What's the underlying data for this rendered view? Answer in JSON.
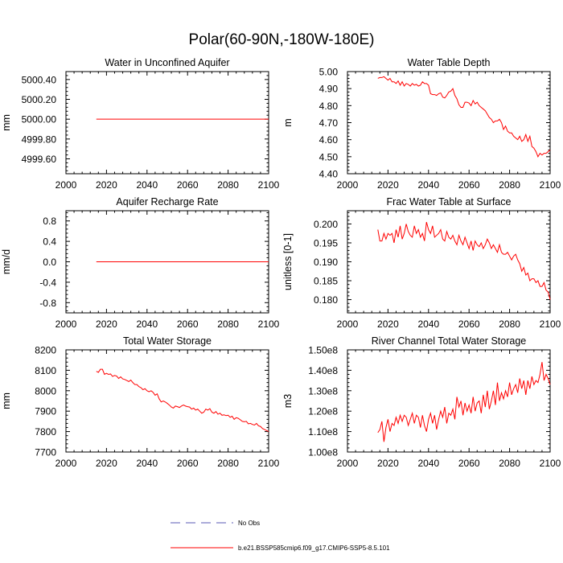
{
  "figure_title": "Polar(60-90N,-180W-180E)",
  "legend": {
    "items": [
      {
        "label": "No Obs",
        "style": "dashed",
        "color": "#5a5ab4"
      },
      {
        "label": "b.e21.BSSP585cmip6.f09_g17.CMIP6-SSP5-8.5.101",
        "style": "solid",
        "color": "#ff0000"
      }
    ]
  },
  "colors": {
    "series": "#ff0000",
    "axis": "#000000"
  },
  "chart_data": [
    {
      "type": "line",
      "title": "Water in Unconfined Aquifer",
      "ylabel": "mm",
      "xlabel": "",
      "xlim": [
        2000,
        2100
      ],
      "xticks": [
        2000,
        2020,
        2040,
        2060,
        2080,
        2100
      ],
      "xtick_labels": [
        "2000",
        "2020",
        "2040",
        "2060",
        "2080",
        "2100"
      ],
      "ylim": [
        4999.45,
        5000.48
      ],
      "yticks": [
        5000.4,
        5000.2,
        5000.0,
        4999.8,
        4999.6
      ],
      "ytick_labels": [
        "5000.40",
        "5000.20",
        "5000.00",
        "4999.80",
        "4999.60"
      ],
      "series": [
        {
          "name": "b.e21.BSSP585cmip6.f09_g17.CMIP6-SSP5-8.5.101",
          "x_start": 2015,
          "values": [
            5000.0,
            5000.0,
            5000.0,
            5000.0,
            5000.0,
            5000.0,
            5000.0,
            5000.0,
            5000.0,
            5000.0,
            5000.0,
            5000.0,
            5000.0,
            5000.0,
            5000.0,
            5000.0,
            5000.0,
            5000.0,
            5000.0,
            5000.0,
            5000.0,
            5000.0,
            5000.0,
            5000.0,
            5000.0,
            5000.0,
            5000.0,
            5000.0,
            5000.0,
            5000.0,
            5000.0,
            5000.0,
            5000.0,
            5000.0,
            5000.0,
            5000.0,
            5000.0,
            5000.0,
            5000.0,
            5000.0,
            5000.0,
            5000.0,
            5000.0,
            5000.0,
            5000.0,
            5000.0,
            5000.0,
            5000.0,
            5000.0,
            5000.0,
            5000.0,
            5000.0,
            5000.0,
            5000.0,
            5000.0,
            5000.0,
            5000.0,
            5000.0,
            5000.0,
            5000.0,
            5000.0,
            5000.0,
            5000.0,
            5000.0,
            5000.0,
            5000.0,
            5000.0,
            5000.0,
            5000.0,
            5000.0,
            5000.0,
            5000.0,
            5000.0,
            5000.0,
            5000.0,
            5000.0,
            5000.0,
            5000.0,
            5000.0,
            5000.0,
            5000.0,
            5000.0,
            5000.0,
            5000.0,
            5000.0,
            5000.0
          ]
        }
      ]
    },
    {
      "type": "line",
      "title": "Water Table Depth",
      "ylabel": "m",
      "xlabel": "",
      "xlim": [
        2000,
        2100
      ],
      "xticks": [
        2000,
        2020,
        2040,
        2060,
        2080,
        2100
      ],
      "xtick_labels": [
        "2000",
        "2020",
        "2040",
        "2060",
        "2080",
        "2100"
      ],
      "ylim": [
        4.4,
        5.0
      ],
      "yticks": [
        5.0,
        4.9,
        4.8,
        4.7,
        4.6,
        4.5,
        4.4
      ],
      "ytick_labels": [
        "5.00",
        "4.90",
        "4.80",
        "4.70",
        "4.60",
        "4.50",
        "4.40"
      ],
      "series": [
        {
          "name": "b.e21.BSSP585cmip6.f09_g17.CMIP6-SSP5-8.5.101",
          "x_start": 2015,
          "values": [
            4.96,
            4.965,
            4.965,
            4.97,
            4.96,
            4.95,
            4.96,
            4.94,
            4.94,
            4.93,
            4.945,
            4.92,
            4.94,
            4.915,
            4.93,
            4.925,
            4.915,
            4.93,
            4.92,
            4.925,
            4.915,
            4.92,
            4.94,
            4.93,
            4.93,
            4.92,
            4.87,
            4.865,
            4.865,
            4.86,
            4.87,
            4.875,
            4.85,
            4.845,
            4.86,
            4.88,
            4.885,
            4.9,
            4.86,
            4.84,
            4.805,
            4.79,
            4.79,
            4.82,
            4.82,
            4.815,
            4.8,
            4.83,
            4.81,
            4.82,
            4.8,
            4.79,
            4.78,
            4.77,
            4.75,
            4.73,
            4.72,
            4.7,
            4.71,
            4.71,
            4.72,
            4.7,
            4.66,
            4.68,
            4.65,
            4.64,
            4.64,
            4.62,
            4.61,
            4.6,
            4.62,
            4.59,
            4.6,
            4.63,
            4.59,
            4.62,
            4.56,
            4.55,
            4.53,
            4.5,
            4.52,
            4.51,
            4.52,
            4.52,
            4.53,
            4.54
          ]
        }
      ]
    },
    {
      "type": "line",
      "title": "Aquifer Recharge Rate",
      "ylabel": "mm/d",
      "xlabel": "",
      "xlim": [
        2000,
        2100
      ],
      "xticks": [
        2000,
        2020,
        2040,
        2060,
        2080,
        2100
      ],
      "xtick_labels": [
        "2000",
        "2020",
        "2040",
        "2060",
        "2080",
        "2100"
      ],
      "ylim": [
        -1.0,
        1.0
      ],
      "yticks": [
        0.8,
        0.4,
        0.0,
        -0.4,
        -0.8
      ],
      "ytick_labels": [
        "0.8",
        "0.4",
        "0.0",
        "-0.4",
        "-0.8"
      ],
      "series": [
        {
          "name": "b.e21.BSSP585cmip6.f09_g17.CMIP6-SSP5-8.5.101",
          "x_start": 2015,
          "values": [
            0,
            0,
            0,
            0,
            0,
            0,
            0,
            0,
            0,
            0,
            0,
            0,
            0,
            0,
            0,
            0,
            0,
            0,
            0,
            0,
            0,
            0,
            0,
            0,
            0,
            0,
            0,
            0,
            0,
            0,
            0,
            0,
            0,
            0,
            0,
            0,
            0,
            0,
            0,
            0,
            0,
            0,
            0,
            0,
            0,
            0,
            0,
            0,
            0,
            0,
            0,
            0,
            0,
            0,
            0,
            0,
            0,
            0,
            0,
            0,
            0,
            0,
            0,
            0,
            0,
            0,
            0,
            0,
            0,
            0,
            0,
            0,
            0,
            0,
            0,
            0,
            0,
            0,
            0,
            0,
            0,
            0,
            0,
            0,
            0,
            0
          ]
        }
      ]
    },
    {
      "type": "line",
      "title": "Frac Water Table at Surface",
      "ylabel": "unitless [0-1]",
      "xlabel": "",
      "xlim": [
        2000,
        2100
      ],
      "xticks": [
        2000,
        2020,
        2040,
        2060,
        2080,
        2100
      ],
      "xtick_labels": [
        "2000",
        "2020",
        "2040",
        "2060",
        "2080",
        "2100"
      ],
      "ylim": [
        0.1765,
        0.2035
      ],
      "yticks": [
        0.2,
        0.195,
        0.19,
        0.185,
        0.18
      ],
      "ytick_labels": [
        "0.200",
        "0.195",
        "0.190",
        "0.185",
        "0.180"
      ],
      "series": [
        {
          "name": "b.e21.BSSP585cmip6.f09_g17.CMIP6-SSP5-8.5.101",
          "x_start": 2015,
          "values": [
            0.1985,
            0.1955,
            0.1955,
            0.1975,
            0.196,
            0.1975,
            0.197,
            0.1975,
            0.195,
            0.1985,
            0.1965,
            0.1995,
            0.196,
            0.1975,
            0.2,
            0.198,
            0.197,
            0.1965,
            0.1995,
            0.1975,
            0.1985,
            0.1965,
            0.1975,
            0.1955,
            0.2005,
            0.1985,
            0.1975,
            0.1995,
            0.1965,
            0.197,
            0.1975,
            0.1985,
            0.196,
            0.1955,
            0.198,
            0.1965,
            0.196,
            0.197,
            0.1955,
            0.1945,
            0.197,
            0.1955,
            0.1945,
            0.1965,
            0.195,
            0.1935,
            0.1955,
            0.193,
            0.1955,
            0.1945,
            0.194,
            0.195,
            0.1935,
            0.1945,
            0.196,
            0.195,
            0.1935,
            0.1945,
            0.1935,
            0.1925,
            0.1945,
            0.1925,
            0.192,
            0.192,
            0.1925,
            0.1915,
            0.1905,
            0.1915,
            0.192,
            0.1905,
            0.1895,
            0.1875,
            0.1885,
            0.1865,
            0.187,
            0.185,
            0.1855,
            0.1855,
            0.1845,
            0.185,
            0.1835,
            0.1835,
            0.1845,
            0.1825,
            0.182,
            0.18
          ]
        }
      ]
    },
    {
      "type": "line",
      "title": "Total Water Storage",
      "ylabel": "mm",
      "xlabel": "",
      "xlim": [
        2000,
        2100
      ],
      "xticks": [
        2000,
        2020,
        2040,
        2060,
        2080,
        2100
      ],
      "xtick_labels": [
        "2000",
        "2020",
        "2040",
        "2060",
        "2080",
        "2100"
      ],
      "ylim": [
        7700,
        8200
      ],
      "yticks": [
        8200,
        8100,
        8000,
        7900,
        7800,
        7700
      ],
      "ytick_labels": [
        "8200",
        "8100",
        "8000",
        "7900",
        "7800",
        "7700"
      ],
      "series": [
        {
          "name": "b.e21.BSSP585cmip6.f09_g17.CMIP6-SSP5-8.5.101",
          "x_start": 2015,
          "values": [
            8095,
            8090,
            8105,
            8105,
            8080,
            8085,
            8080,
            8082,
            8070,
            8075,
            8072,
            8060,
            8068,
            8058,
            8055,
            8050,
            8045,
            8052,
            8040,
            8030,
            8030,
            8020,
            8015,
            8005,
            8010,
            8000,
            7995,
            8000,
            7992,
            7978,
            7985,
            7960,
            7945,
            7950,
            7945,
            7938,
            7930,
            7920,
            7915,
            7925,
            7922,
            7918,
            7925,
            7930,
            7925,
            7922,
            7920,
            7910,
            7915,
            7905,
            7910,
            7900,
            7890,
            7895,
            7910,
            7905,
            7912,
            7895,
            7890,
            7898,
            7885,
            7890,
            7880,
            7882,
            7878,
            7880,
            7870,
            7875,
            7860,
            7868,
            7865,
            7858,
            7850,
            7848,
            7850,
            7838,
            7840,
            7835,
            7832,
            7840,
            7828,
            7825,
            7815,
            7810,
            7805,
            7800
          ]
        }
      ]
    },
    {
      "type": "line",
      "title": "River Channel Total Water Storage",
      "ylabel": "m3",
      "xlabel": "",
      "xlim": [
        2000,
        2100
      ],
      "xticks": [
        2000,
        2020,
        2040,
        2060,
        2080,
        2100
      ],
      "xtick_labels": [
        "2000",
        "2020",
        "2040",
        "2060",
        "2080",
        "2100"
      ],
      "ylim": [
        100000000,
        150000000
      ],
      "yticks": [
        150000000,
        140000000,
        130000000,
        120000000,
        110000000,
        100000000
      ],
      "ytick_labels": [
        "1.50e8",
        "1.40e8",
        "1.30e8",
        "1.20e8",
        "1.10e8",
        "1.00e8"
      ],
      "series": [
        {
          "name": "b.e21.BSSP585cmip6.f09_g17.CMIP6-SSP5-8.5.101",
          "x_start": 2015,
          "values": [
            109500000,
            111000000,
            115000000,
            105000000,
            112000000,
            116000000,
            110000000,
            114000000,
            113000000,
            117000000,
            114000000,
            118000000,
            115000000,
            118000000,
            117000000,
            113000000,
            116000000,
            119000000,
            114000000,
            118000000,
            117000000,
            112000000,
            118000000,
            113000000,
            110000000,
            116000000,
            119000000,
            114000000,
            118000000,
            111000000,
            116000000,
            120000000,
            117000000,
            122000000,
            114000000,
            119000000,
            118000000,
            121000000,
            116000000,
            127000000,
            122000000,
            125000000,
            118000000,
            124000000,
            120000000,
            123000000,
            119000000,
            127000000,
            120000000,
            124000000,
            125000000,
            119000000,
            128000000,
            122000000,
            130000000,
            121000000,
            125000000,
            130000000,
            123000000,
            134000000,
            125000000,
            129000000,
            126000000,
            130000000,
            127000000,
            134000000,
            128000000,
            131000000,
            133000000,
            129000000,
            136000000,
            131000000,
            135000000,
            128000000,
            135000000,
            131000000,
            137000000,
            133000000,
            135000000,
            134000000,
            138000000,
            144000000,
            135000000,
            138000000,
            136000000,
            133000000
          ]
        }
      ]
    }
  ]
}
